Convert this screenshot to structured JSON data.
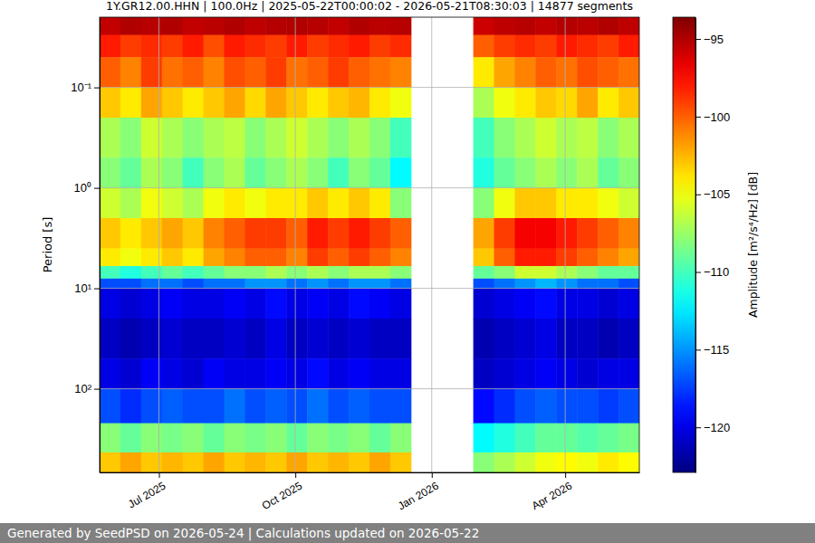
{
  "chart_data": {
    "type": "heatmap",
    "title": "1Y.GR12.00.HHN | 100.0Hz | 2025-05-22T00:00:02 - 2026-05-21T08:30:03 | 14877 segments",
    "footer": "Generated by SeedPSD on 2026-05-24 | Calculations updated on 2026-05-22",
    "ylabel": "Period [s]",
    "log": "y",
    "grid": true,
    "color": "jet",
    "xlim": [
      "2025-05-22",
      "2026-05-21"
    ],
    "xticks": [
      {
        "value": "2025-07-01",
        "label": "Jul 2025"
      },
      {
        "value": "2025-10-01",
        "label": "Oct 2025"
      },
      {
        "value": "2026-01-01",
        "label": "Jan 2026"
      },
      {
        "value": "2026-04-01",
        "label": "Apr 2026"
      }
    ],
    "ylim": [
      0.02,
      680
    ],
    "yticks": [
      {
        "value": 0.1,
        "label": "10⁻¹"
      },
      {
        "value": 1,
        "label": "10⁰"
      },
      {
        "value": 10,
        "label": "10¹"
      },
      {
        "value": 100,
        "label": "10²"
      }
    ],
    "x_edges": [
      "2025-05-22",
      "2025-06-05",
      "2025-06-19",
      "2025-07-03",
      "2025-07-17",
      "2025-07-31",
      "2025-08-14",
      "2025-08-28",
      "2025-09-11",
      "2025-09-25",
      "2025-10-09",
      "2025-10-23",
      "2025-11-06",
      "2025-11-20",
      "2025-12-04",
      "2025-12-18",
      "2026-01-01",
      "2026-01-15",
      "2026-01-29",
      "2026-02-12",
      "2026-02-26",
      "2026-03-12",
      "2026-03-26",
      "2026-04-09",
      "2026-04-23",
      "2026-05-07",
      "2026-05-21"
    ],
    "y_edges": [
      0.02,
      0.03,
      0.05,
      0.1,
      0.2,
      0.5,
      1,
      2,
      4,
      6,
      8,
      10,
      20,
      50,
      100,
      220,
      430,
      680
    ],
    "z": [
      [
        -95.5,
        -95,
        -95.2,
        -95,
        -95.5,
        -95.3,
        -95,
        -95.4,
        -95.1,
        -95,
        -95.2,
        -95.5,
        -95,
        -95.3,
        -95.2,
        null,
        null,
        null,
        -95.8,
        -95.4,
        -95.2,
        -95.5,
        -95.1,
        -95.3,
        -95,
        -95.4
      ],
      [
        -98,
        -99,
        -98.5,
        -99,
        -98,
        -99.5,
        -98,
        -98.5,
        -99,
        -98,
        -99,
        -98.5,
        -98,
        -99,
        -98.5,
        null,
        null,
        null,
        -100,
        -99,
        -98.5,
        -99,
        -98,
        -98.5,
        -99,
        -98
      ],
      [
        -100,
        -101,
        -99,
        -100.5,
        -100,
        -101,
        -99.5,
        -100,
        -99,
        -100.5,
        -100,
        -99,
        -100,
        -100.5,
        -101,
        null,
        null,
        null,
        -104,
        -102,
        -101,
        -100,
        -100.5,
        -99.5,
        -100,
        -100.5
      ],
      [
        -103,
        -104,
        -102,
        -103,
        -104,
        -103,
        -102,
        -103.5,
        -102,
        -103,
        -104,
        -103,
        -102.5,
        -104,
        -105,
        null,
        null,
        null,
        -107,
        -105,
        -104,
        -103,
        -103.5,
        -102,
        -104,
        -103
      ],
      [
        -107,
        -108,
        -106,
        -107,
        -108,
        -107,
        -106.5,
        -108,
        -107,
        -106,
        -107,
        -108,
        -107,
        -108,
        -110,
        null,
        null,
        null,
        -110,
        -108,
        -107,
        -106,
        -107,
        -106.5,
        -108,
        -107
      ],
      [
        -108,
        -109,
        -107,
        -108,
        -110,
        -108,
        -107,
        -109,
        -108,
        -107,
        -108,
        -110,
        -108,
        -109,
        -112,
        null,
        null,
        null,
        -111,
        -109,
        -108,
        -107,
        -108,
        -107,
        -109,
        -108
      ],
      [
        -106,
        -107,
        -105,
        -106,
        -107,
        -105,
        -104,
        -105,
        -104,
        -104,
        -103,
        -104,
        -103,
        -104,
        -108,
        null,
        null,
        null,
        -108,
        -105,
        -103,
        -103,
        -104,
        -104,
        -105,
        -106
      ],
      [
        -103,
        -104,
        -103,
        -102,
        -103,
        -101,
        -100,
        -99,
        -99,
        -100,
        -98,
        -99,
        -98,
        -99,
        -100,
        null,
        null,
        null,
        -102,
        -99,
        -97,
        -97,
        -98,
        -99,
        -100,
        -101
      ],
      [
        -104,
        -105,
        -104,
        -103,
        -104,
        -102,
        -101,
        -100,
        -100,
        -101,
        -99,
        -100,
        -99,
        -100,
        -101,
        null,
        null,
        null,
        -103,
        -100,
        -98,
        -98,
        -99,
        -100,
        -101,
        -102
      ],
      [
        -110,
        -111,
        -110,
        -109,
        -110,
        -109,
        -108,
        -108,
        -107,
        -108,
        -107,
        -108,
        -107,
        -107,
        -108,
        null,
        null,
        null,
        -109,
        -108,
        -106,
        -106,
        -107,
        -108,
        -109,
        -109
      ],
      [
        -117,
        -117,
        -116,
        -116,
        -117,
        -116,
        -116,
        -115,
        -115,
        -116,
        -115,
        -116,
        -115,
        -115,
        -116,
        null,
        null,
        null,
        -117,
        -116,
        -115,
        -114,
        -115,
        -116,
        -116,
        -117
      ],
      [
        -120,
        -120.5,
        -120,
        -119.5,
        -120,
        -120,
        -119.5,
        -120,
        -119,
        -120,
        -119.5,
        -120,
        -119,
        -119.5,
        -120,
        null,
        null,
        null,
        -120.5,
        -120,
        -119.5,
        -119,
        -120,
        -120,
        -120.5,
        -120
      ],
      [
        -121,
        -121.5,
        -121,
        -120.5,
        -121,
        -121,
        -120.5,
        -121,
        -120,
        -121,
        -120.5,
        -121,
        -120.5,
        -121,
        -121,
        null,
        null,
        null,
        -121.5,
        -121,
        -120.5,
        -120,
        -121,
        -121,
        -121.5,
        -121
      ],
      [
        -120,
        -120.5,
        -119.5,
        -120,
        -120.5,
        -119.5,
        -120,
        -120,
        -119.5,
        -120,
        -119,
        -120,
        -119.5,
        -120,
        -120,
        null,
        null,
        null,
        -121,
        -120.5,
        -120,
        -119.5,
        -120,
        -120.5,
        -120,
        -120
      ],
      [
        -117,
        -118,
        -117,
        -116.5,
        -117,
        -117,
        -116,
        -117,
        -116.5,
        -117,
        -116,
        -117,
        -116.5,
        -117,
        -117,
        null,
        null,
        null,
        -119,
        -118,
        -117,
        -116.5,
        -117,
        -117,
        -117.5,
        -117
      ],
      [
        -108,
        -109,
        -108,
        -108.5,
        -108,
        -109,
        -108,
        -108.5,
        -108,
        -109,
        -108,
        -108.5,
        -108,
        -109,
        -108,
        null,
        null,
        null,
        -112,
        -111,
        -110,
        -109,
        -109,
        -109.5,
        -109,
        -108.5
      ],
      [
        -103,
        -102,
        -103,
        -102.5,
        -103,
        -102,
        -103,
        -102.5,
        -103,
        -102,
        -103,
        -102.5,
        -103,
        -102,
        -103,
        null,
        null,
        null,
        -108,
        -107,
        -106,
        -105,
        -104.5,
        -105,
        -104,
        -104.5
      ]
    ],
    "colorbar": {
      "label": "Amplitude [m²/s⁴/Hz] [dB]",
      "range": [
        -122.9,
        -93.6
      ],
      "ticks": [
        {
          "value": -95,
          "label": "−95"
        },
        {
          "value": -100,
          "label": "−100"
        },
        {
          "value": -105,
          "label": "−105"
        },
        {
          "value": -110,
          "label": "−110"
        },
        {
          "value": -115,
          "label": "−115"
        },
        {
          "value": -120,
          "label": "−120"
        }
      ]
    }
  }
}
